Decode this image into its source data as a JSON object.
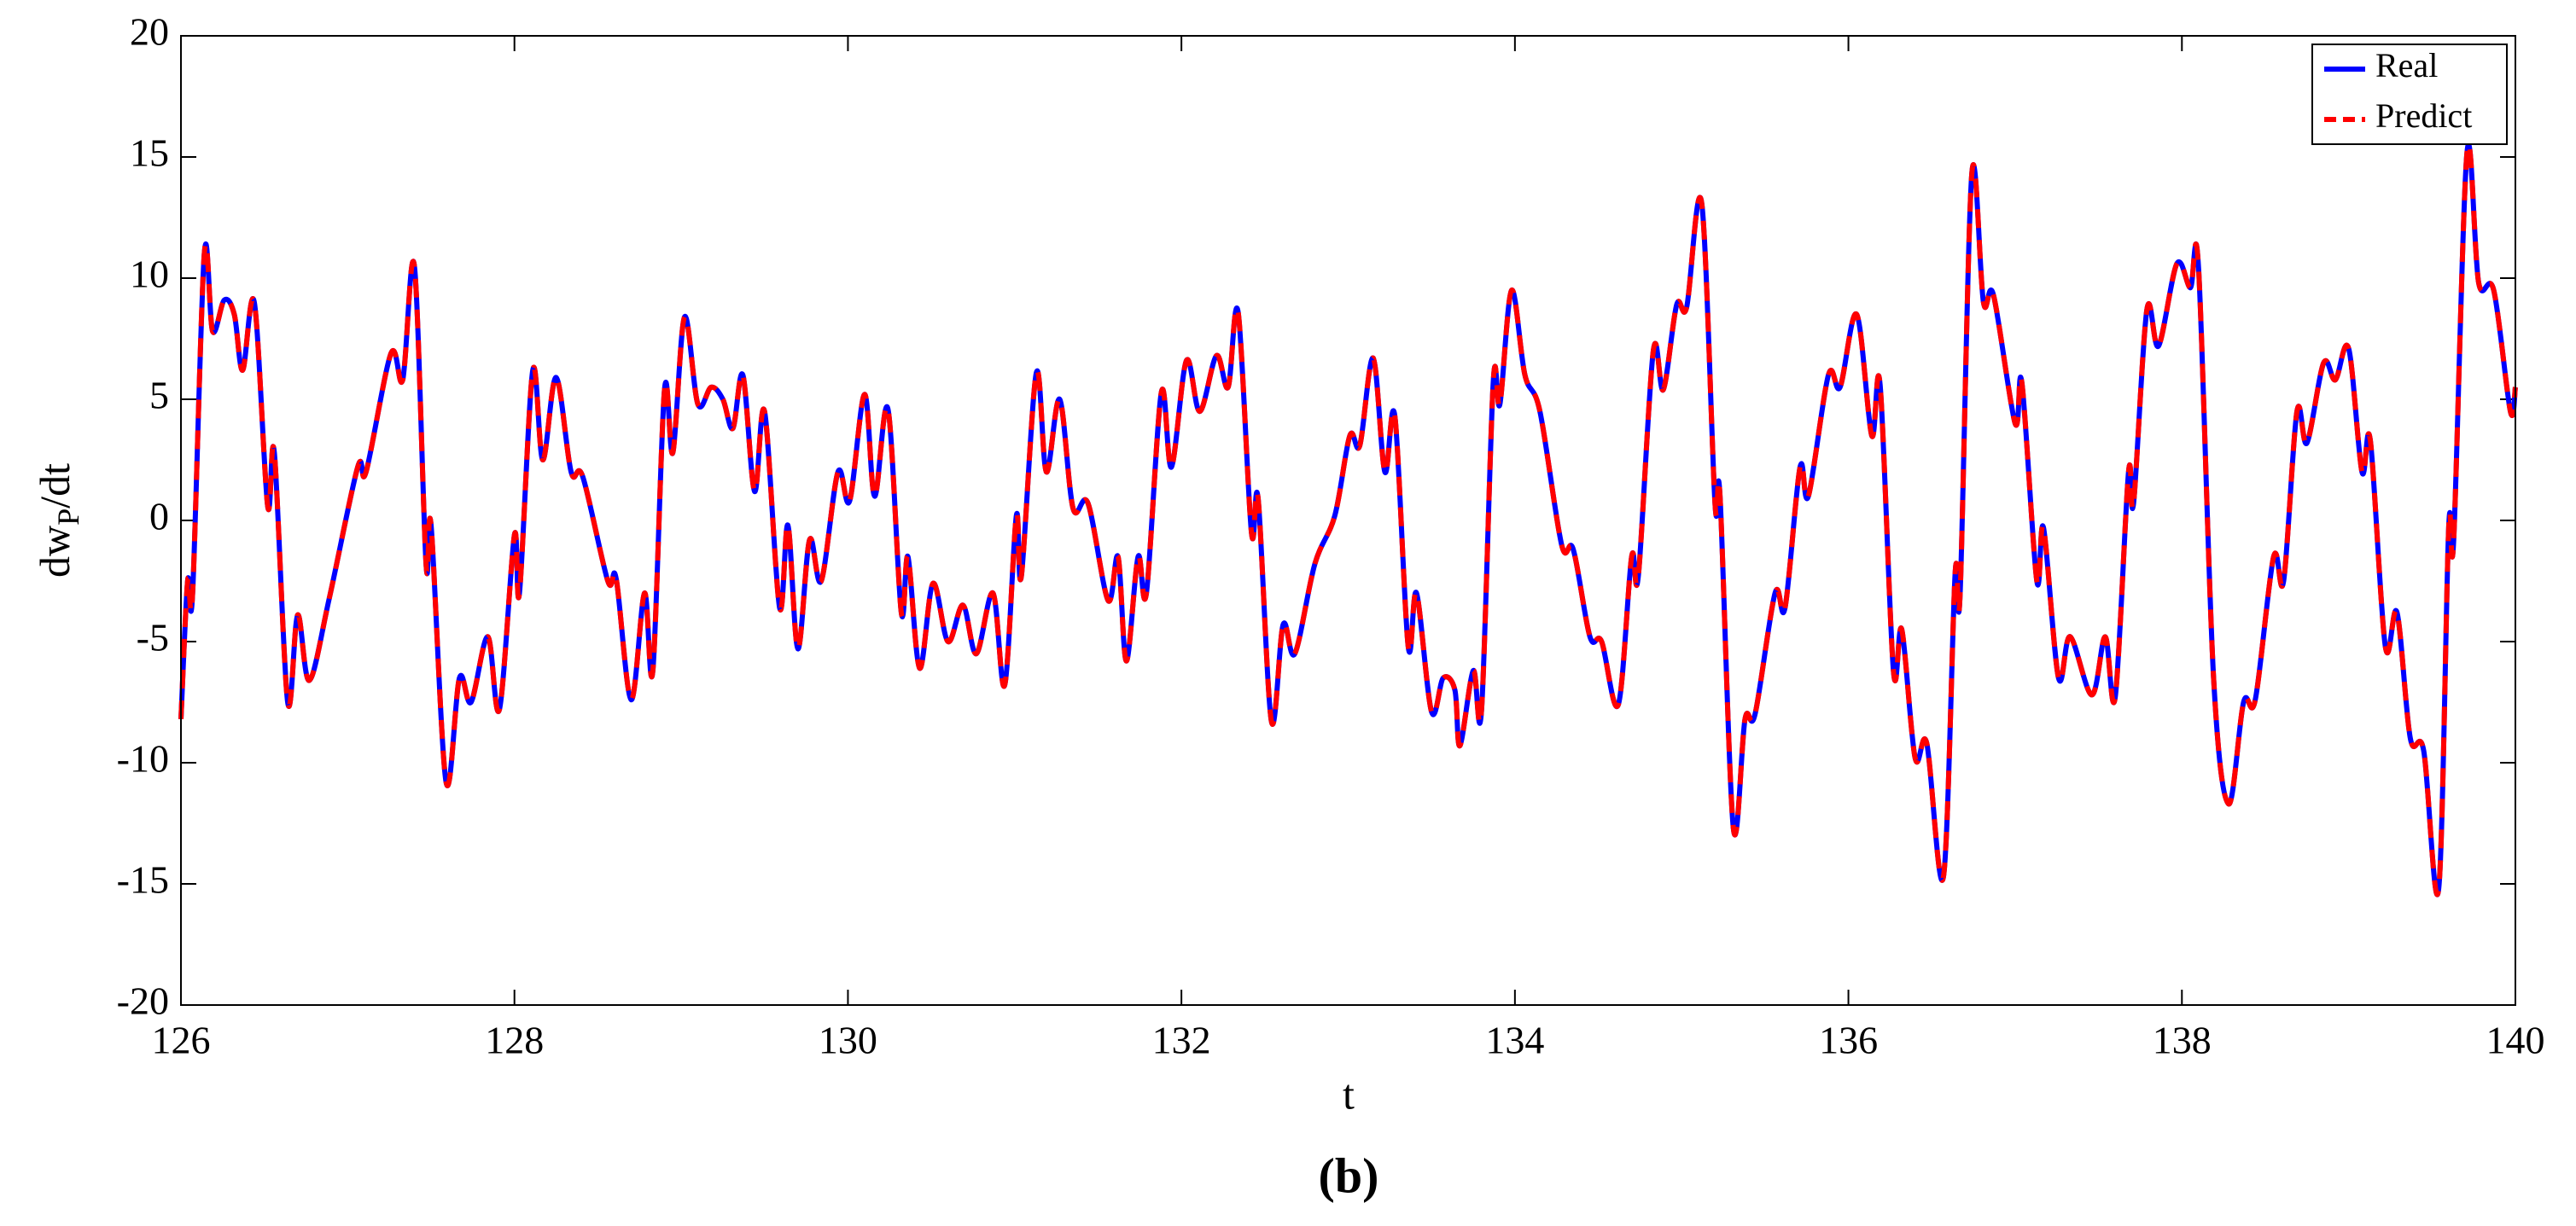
{
  "chart_data": {
    "type": "line",
    "xlabel": "t",
    "ylabel": {
      "main": "dw",
      "sub": "P",
      "rest": "/dt"
    },
    "caption": "(b)",
    "x": [
      126.0,
      126.04,
      126.07,
      126.14,
      126.19,
      126.26,
      126.32,
      126.37,
      126.44,
      126.52,
      126.56,
      126.64,
      126.7,
      126.77,
      126.89,
      127.06,
      127.11,
      127.26,
      127.33,
      127.4,
      127.47,
      127.5,
      127.59,
      127.67,
      127.74,
      127.84,
      127.91,
      128.0,
      128.03,
      128.11,
      128.17,
      128.25,
      128.34,
      128.41,
      128.56,
      128.61,
      128.7,
      128.78,
      128.83,
      128.9,
      128.95,
      129.02,
      129.1,
      129.18,
      129.25,
      129.31,
      129.37,
      129.44,
      129.5,
      129.59,
      129.64,
      129.7,
      129.77,
      129.84,
      129.94,
      130.01,
      130.1,
      130.16,
      130.24,
      130.32,
      130.36,
      130.43,
      130.51,
      130.6,
      130.69,
      130.77,
      130.87,
      130.94,
      131.01,
      131.04,
      131.13,
      131.19,
      131.27,
      131.35,
      131.44,
      131.56,
      131.62,
      131.67,
      131.74,
      131.79,
      131.88,
      131.94,
      132.03,
      132.11,
      132.21,
      132.28,
      132.34,
      132.42,
      132.46,
      132.54,
      132.61,
      132.68,
      132.8,
      132.92,
      133.01,
      133.07,
      133.15,
      133.22,
      133.28,
      133.36,
      133.41,
      133.5,
      133.57,
      133.64,
      133.67,
      133.75,
      133.8,
      133.87,
      133.91,
      133.98,
      134.06,
      134.15,
      134.28,
      134.35,
      134.45,
      134.52,
      134.62,
      134.7,
      134.74,
      134.83,
      134.89,
      134.97,
      135.03,
      135.12,
      135.2,
      135.23,
      135.31,
      135.38,
      135.44,
      135.56,
      135.62,
      135.71,
      135.76,
      135.88,
      135.95,
      136.05,
      136.14,
      136.19,
      136.27,
      136.32,
      136.4,
      136.47,
      136.57,
      136.64,
      136.67,
      136.74,
      136.81,
      136.87,
      137.0,
      137.04,
      137.13,
      137.17,
      137.26,
      137.33,
      137.46,
      137.54,
      137.6,
      137.68,
      137.71,
      137.79,
      137.86,
      137.97,
      138.05,
      138.1,
      138.19,
      138.28,
      138.37,
      138.44,
      138.55,
      138.61,
      138.69,
      138.75,
      138.85,
      138.92,
      139.0,
      139.08,
      139.13,
      139.22,
      139.29,
      139.37,
      139.45,
      139.54,
      139.6,
      139.63,
      139.71,
      139.78,
      139.87,
      139.97,
      140.0
    ],
    "series": [
      {
        "name": "Real",
        "color": "#0000ff",
        "style": "solid",
        "values": [
          -8.2,
          -2.5,
          -3,
          11,
          7.8,
          9.1,
          8.5,
          6.2,
          9.0,
          0.6,
          2.8,
          -7.5,
          -3.9,
          -6.6,
          -3.2,
          2.2,
          2.0,
          6.9,
          5.8,
          10.5,
          -1.8,
          -0.2,
          -10.8,
          -6.5,
          -7.5,
          -4.8,
          -7.8,
          -0.6,
          -3.0,
          6.2,
          2.5,
          5.9,
          2.0,
          1.8,
          -2.5,
          -2.4,
          -7.4,
          -3.0,
          -6.2,
          5.4,
          2.8,
          8.4,
          4.8,
          5.5,
          5.0,
          3.8,
          6.0,
          1.2,
          4.5,
          -3.6,
          -0.2,
          -5.3,
          -0.8,
          -2.5,
          2.0,
          0.8,
          5.2,
          1.0,
          4.6,
          -3.8,
          -1.5,
          -6.1,
          -2.6,
          -5.0,
          -3.5,
          -5.5,
          -3.0,
          -6.8,
          0.2,
          -2.3,
          6.1,
          2.0,
          5.0,
          0.5,
          0.7,
          -3.3,
          -1.5,
          -5.8,
          -1.5,
          -3.0,
          5.3,
          2.2,
          6.6,
          4.5,
          6.8,
          5.5,
          8.6,
          -0.5,
          0.9,
          -8.3,
          -4.3,
          -5.5,
          -1.8,
          0.2,
          3.5,
          3.1,
          6.7,
          2.0,
          4.3,
          -5.2,
          -3.0,
          -7.9,
          -6.5,
          -7.0,
          -9.3,
          -6.2,
          -7.8,
          5.7,
          4.8,
          9.5,
          6.0,
          4.5,
          -1.0,
          -1.2,
          -4.8,
          -5.0,
          -7.6,
          -1.5,
          -2.3,
          7.0,
          5.4,
          8.9,
          8.8,
          13.1,
          0.7,
          1.0,
          -12.7,
          -8.2,
          -8.0,
          -3.0,
          -3.6,
          2.2,
          1.0,
          6.0,
          5.5,
          8.5,
          3.5,
          5.6,
          -6.2,
          -4.5,
          -9.8,
          -9.2,
          -14.7,
          -2.2,
          -3.0,
          14.3,
          9.0,
          9.3,
          4.0,
          5.7,
          -2.5,
          -0.3,
          -6.5,
          -4.8,
          -7.2,
          -4.8,
          -7.3,
          2.0,
          0.7,
          8.7,
          7.2,
          10.6,
          9.6,
          10.4,
          -6.5,
          -11.7,
          -7.5,
          -7.4,
          -1.5,
          -2.5,
          4.5,
          3.2,
          6.5,
          5.8,
          7.1,
          2.0,
          3.3,
          -5.2,
          -3.8,
          -9.0,
          -9.5,
          -15.2,
          -0.3,
          -0.8,
          15.2,
          9.8,
          9.5,
          4.5,
          5.5
        ]
      },
      {
        "name": "Predict",
        "color": "#ff0000",
        "style": "dashed",
        "values": [
          -8.2,
          -2.5,
          -3,
          11,
          7.8,
          9.1,
          8.5,
          6.2,
          9.0,
          0.6,
          2.8,
          -7.5,
          -3.9,
          -6.6,
          -3.2,
          2.2,
          2.0,
          6.9,
          5.8,
          10.5,
          -1.8,
          -0.2,
          -10.8,
          -6.5,
          -7.5,
          -4.8,
          -7.8,
          -0.6,
          -3.0,
          6.2,
          2.5,
          5.9,
          2.0,
          1.8,
          -2.5,
          -2.4,
          -7.4,
          -3.0,
          -6.2,
          5.4,
          2.8,
          8.4,
          4.8,
          5.5,
          5.0,
          3.8,
          6.0,
          1.2,
          4.5,
          -3.6,
          -0.2,
          -5.3,
          -0.8,
          -2.5,
          2.0,
          0.8,
          5.2,
          1.0,
          4.6,
          -3.8,
          -1.5,
          -6.1,
          -2.6,
          -5.0,
          -3.5,
          -5.5,
          -3.0,
          -6.8,
          0.2,
          -2.3,
          6.1,
          2.0,
          5.0,
          0.5,
          0.7,
          -3.3,
          -1.5,
          -5.8,
          -1.5,
          -3.0,
          5.3,
          2.2,
          6.6,
          4.5,
          6.8,
          5.5,
          8.6,
          -0.5,
          0.9,
          -8.3,
          -4.3,
          -5.5,
          -1.8,
          0.2,
          3.5,
          3.1,
          6.7,
          2.0,
          4.3,
          -5.2,
          -3.0,
          -7.9,
          -6.5,
          -7.0,
          -9.3,
          -6.2,
          -7.8,
          5.7,
          4.8,
          9.5,
          6.0,
          4.5,
          -1.0,
          -1.2,
          -4.8,
          -5.0,
          -7.6,
          -1.5,
          -2.3,
          7.0,
          5.4,
          8.9,
          8.8,
          13.1,
          0.7,
          1.0,
          -12.7,
          -8.2,
          -8.0,
          -3.0,
          -3.6,
          2.2,
          1.0,
          6.0,
          5.5,
          8.5,
          3.5,
          5.6,
          -6.2,
          -4.5,
          -9.8,
          -9.2,
          -14.7,
          -2.2,
          -3.0,
          14.3,
          9.0,
          9.3,
          4.0,
          5.7,
          -2.5,
          -0.3,
          -6.5,
          -4.8,
          -7.2,
          -4.8,
          -7.3,
          2.0,
          0.7,
          8.7,
          7.2,
          10.6,
          9.6,
          10.4,
          -6.5,
          -11.7,
          -7.5,
          -7.4,
          -1.5,
          -2.5,
          4.5,
          3.2,
          6.5,
          5.8,
          7.1,
          2.0,
          3.3,
          -5.2,
          -3.8,
          -9.0,
          -9.5,
          -15.2,
          -0.3,
          -0.8,
          15.2,
          9.8,
          9.5,
          4.5,
          5.5
        ]
      }
    ],
    "xlim": [
      126,
      140
    ],
    "xticks": [
      126,
      128,
      130,
      132,
      134,
      136,
      138,
      140
    ],
    "ylim": [
      -20,
      20
    ],
    "yticks": [
      -20,
      -15,
      -10,
      -5,
      0,
      5,
      10,
      15,
      20
    ],
    "grid": false,
    "legend": "top-right"
  }
}
